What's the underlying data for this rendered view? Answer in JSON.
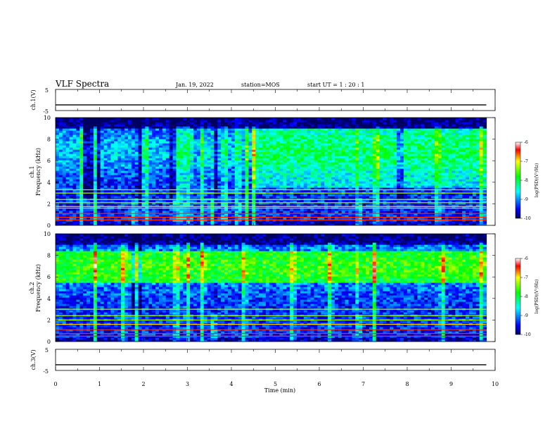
{
  "header": {
    "title": "VLF Spectra",
    "date": "Jan. 19, 2022",
    "station": "station=MOS",
    "start_ut": "start  UT =   1 : 20 : 1"
  },
  "chart_data": [
    {
      "type": "line",
      "name": "ch1-voltage",
      "ylabel": "ch.1(V)",
      "ylim": [
        -5,
        5
      ],
      "yticks": [
        "5",
        "-5"
      ],
      "xlim": [
        0,
        10
      ],
      "series": [
        {
          "x": [
            0,
            9.8
          ],
          "y": [
            -2.3,
            -2.3
          ]
        }
      ]
    },
    {
      "type": "heatmap",
      "name": "ch1-spectrogram",
      "ylabel_line1": "ch.1",
      "ylabel_line2": "Frequency (kHz)",
      "xlim": [
        0,
        10
      ],
      "ylim": [
        0,
        10
      ],
      "yticks": [
        "0",
        "2",
        "4",
        "6",
        "8",
        "10"
      ],
      "colorbar": {
        "label": "log(PSD)(V²/Hz)",
        "range": [
          -10,
          -6
        ],
        "ticks": [
          "-6",
          "-7",
          "-8",
          "-9",
          "-10"
        ]
      },
      "data_end_min": 9.8,
      "bright_lines_khz": [
        0.5,
        0.75,
        1.1,
        1.6,
        1.75,
        2.1,
        2.4,
        3.0,
        3.3
      ],
      "bursts_min": [
        0.6,
        0.9,
        1.8,
        2.05,
        2.75,
        2.9,
        3.05,
        3.35,
        3.55,
        3.85,
        4.15,
        4.35,
        4.5,
        6.9,
        7.3,
        8.7,
        9.7
      ],
      "quiet_gaps_min": [
        [
          0.6,
          1.0
        ],
        [
          1.75,
          1.95
        ],
        [
          2.6,
          2.75
        ],
        [
          3.5,
          3.7
        ],
        [
          6.9,
          7.0
        ],
        [
          7.8,
          7.95
        ]
      ],
      "enhanced_interval_min": [
        4.5,
        9.8
      ]
    },
    {
      "type": "heatmap",
      "name": "ch2-spectrogram",
      "ylabel_line1": "ch.2",
      "ylabel_line2": "Frequency (kHz)",
      "xlim": [
        0,
        10
      ],
      "ylim": [
        0,
        10
      ],
      "yticks": [
        "0",
        "2",
        "4",
        "6",
        "8",
        "10"
      ],
      "colorbar": {
        "label": "log(PSD)(V²/Hz)",
        "range": [
          -10,
          -6
        ],
        "ticks": [
          "-6",
          "-7",
          "-8",
          "-9",
          "-10"
        ]
      },
      "data_end_min": 9.8,
      "bright_lines_khz": [
        0.5,
        0.75,
        1.1,
        1.6,
        2.0,
        2.4,
        3.0
      ],
      "hiss_band_khz": [
        5.5,
        8.5
      ],
      "bursts_min": [
        0.9,
        1.55,
        1.85,
        2.75,
        3.0,
        3.35,
        3.6,
        4.3,
        5.4,
        6.25,
        6.9,
        7.25,
        8.8,
        9.7
      ],
      "quiet_gaps_min": [
        [
          1.75,
          1.95
        ],
        [
          3.5,
          3.7
        ],
        [
          6.9,
          7.0
        ]
      ]
    },
    {
      "type": "line",
      "name": "ch3-voltage",
      "ylabel": "ch.3(V)",
      "ylim": [
        -5,
        5
      ],
      "yticks": [
        "5",
        "-5"
      ],
      "xlim": [
        0,
        10
      ],
      "xlabel": "Time  (min)",
      "xticks": [
        "0",
        "1",
        "2",
        "3",
        "4",
        "5",
        "6",
        "7",
        "8",
        "9",
        "10"
      ],
      "series": [
        {
          "x": [
            0,
            9.8
          ],
          "y": [
            -2.3,
            -2.3
          ]
        }
      ]
    }
  ]
}
